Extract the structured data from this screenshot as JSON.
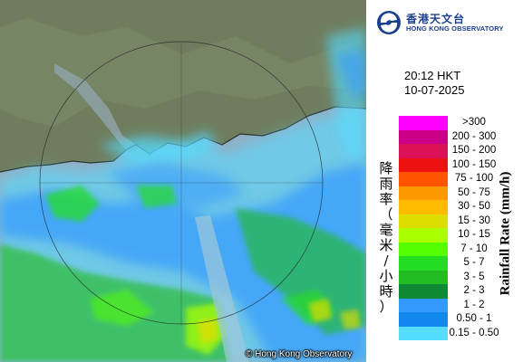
{
  "map": {
    "copyright": "© Hong Kong Observatory",
    "colors": {
      "land": "#6f7d5e",
      "sea": "#8fb0c7"
    }
  },
  "header": {
    "logo_name_zh": "香港天文台",
    "logo_name_en": "HONG KONG OBSERVATORY",
    "logo_icon": "hko-logo-icon"
  },
  "timestamp": {
    "time": "20:12 HKT",
    "date": "10-07-2025"
  },
  "legend": {
    "title_en": "Rainfall Rate (mm/h)",
    "title_zh": "降雨率（毫米/小時）",
    "items": [
      {
        "label": ">300",
        "color": "#ff00ff"
      },
      {
        "label": "200 - 300",
        "color": "#cc0088"
      },
      {
        "label": "150 - 200",
        "color": "#dd1155"
      },
      {
        "label": "100 - 150",
        "color": "#ee1111"
      },
      {
        "label": "75 - 100",
        "color": "#ff5500"
      },
      {
        "label": "50 - 75",
        "color": "#ff9900"
      },
      {
        "label": "30 - 50",
        "color": "#ffbb00"
      },
      {
        "label": "15 - 30",
        "color": "#dddd00"
      },
      {
        "label": "10 - 15",
        "color": "#aaff00"
      },
      {
        "label": "7 - 10",
        "color": "#55ff00"
      },
      {
        "label": "5 - 7",
        "color": "#22dd22"
      },
      {
        "label": "3 - 5",
        "color": "#22bb22"
      },
      {
        "label": "2 - 3",
        "color": "#118833"
      },
      {
        "label": "1 - 2",
        "color": "#3399ff"
      },
      {
        "label": "0.50 - 1",
        "color": "#1188ee"
      },
      {
        "label": "0.15 - 0.50",
        "color": "#55ddff"
      }
    ]
  }
}
